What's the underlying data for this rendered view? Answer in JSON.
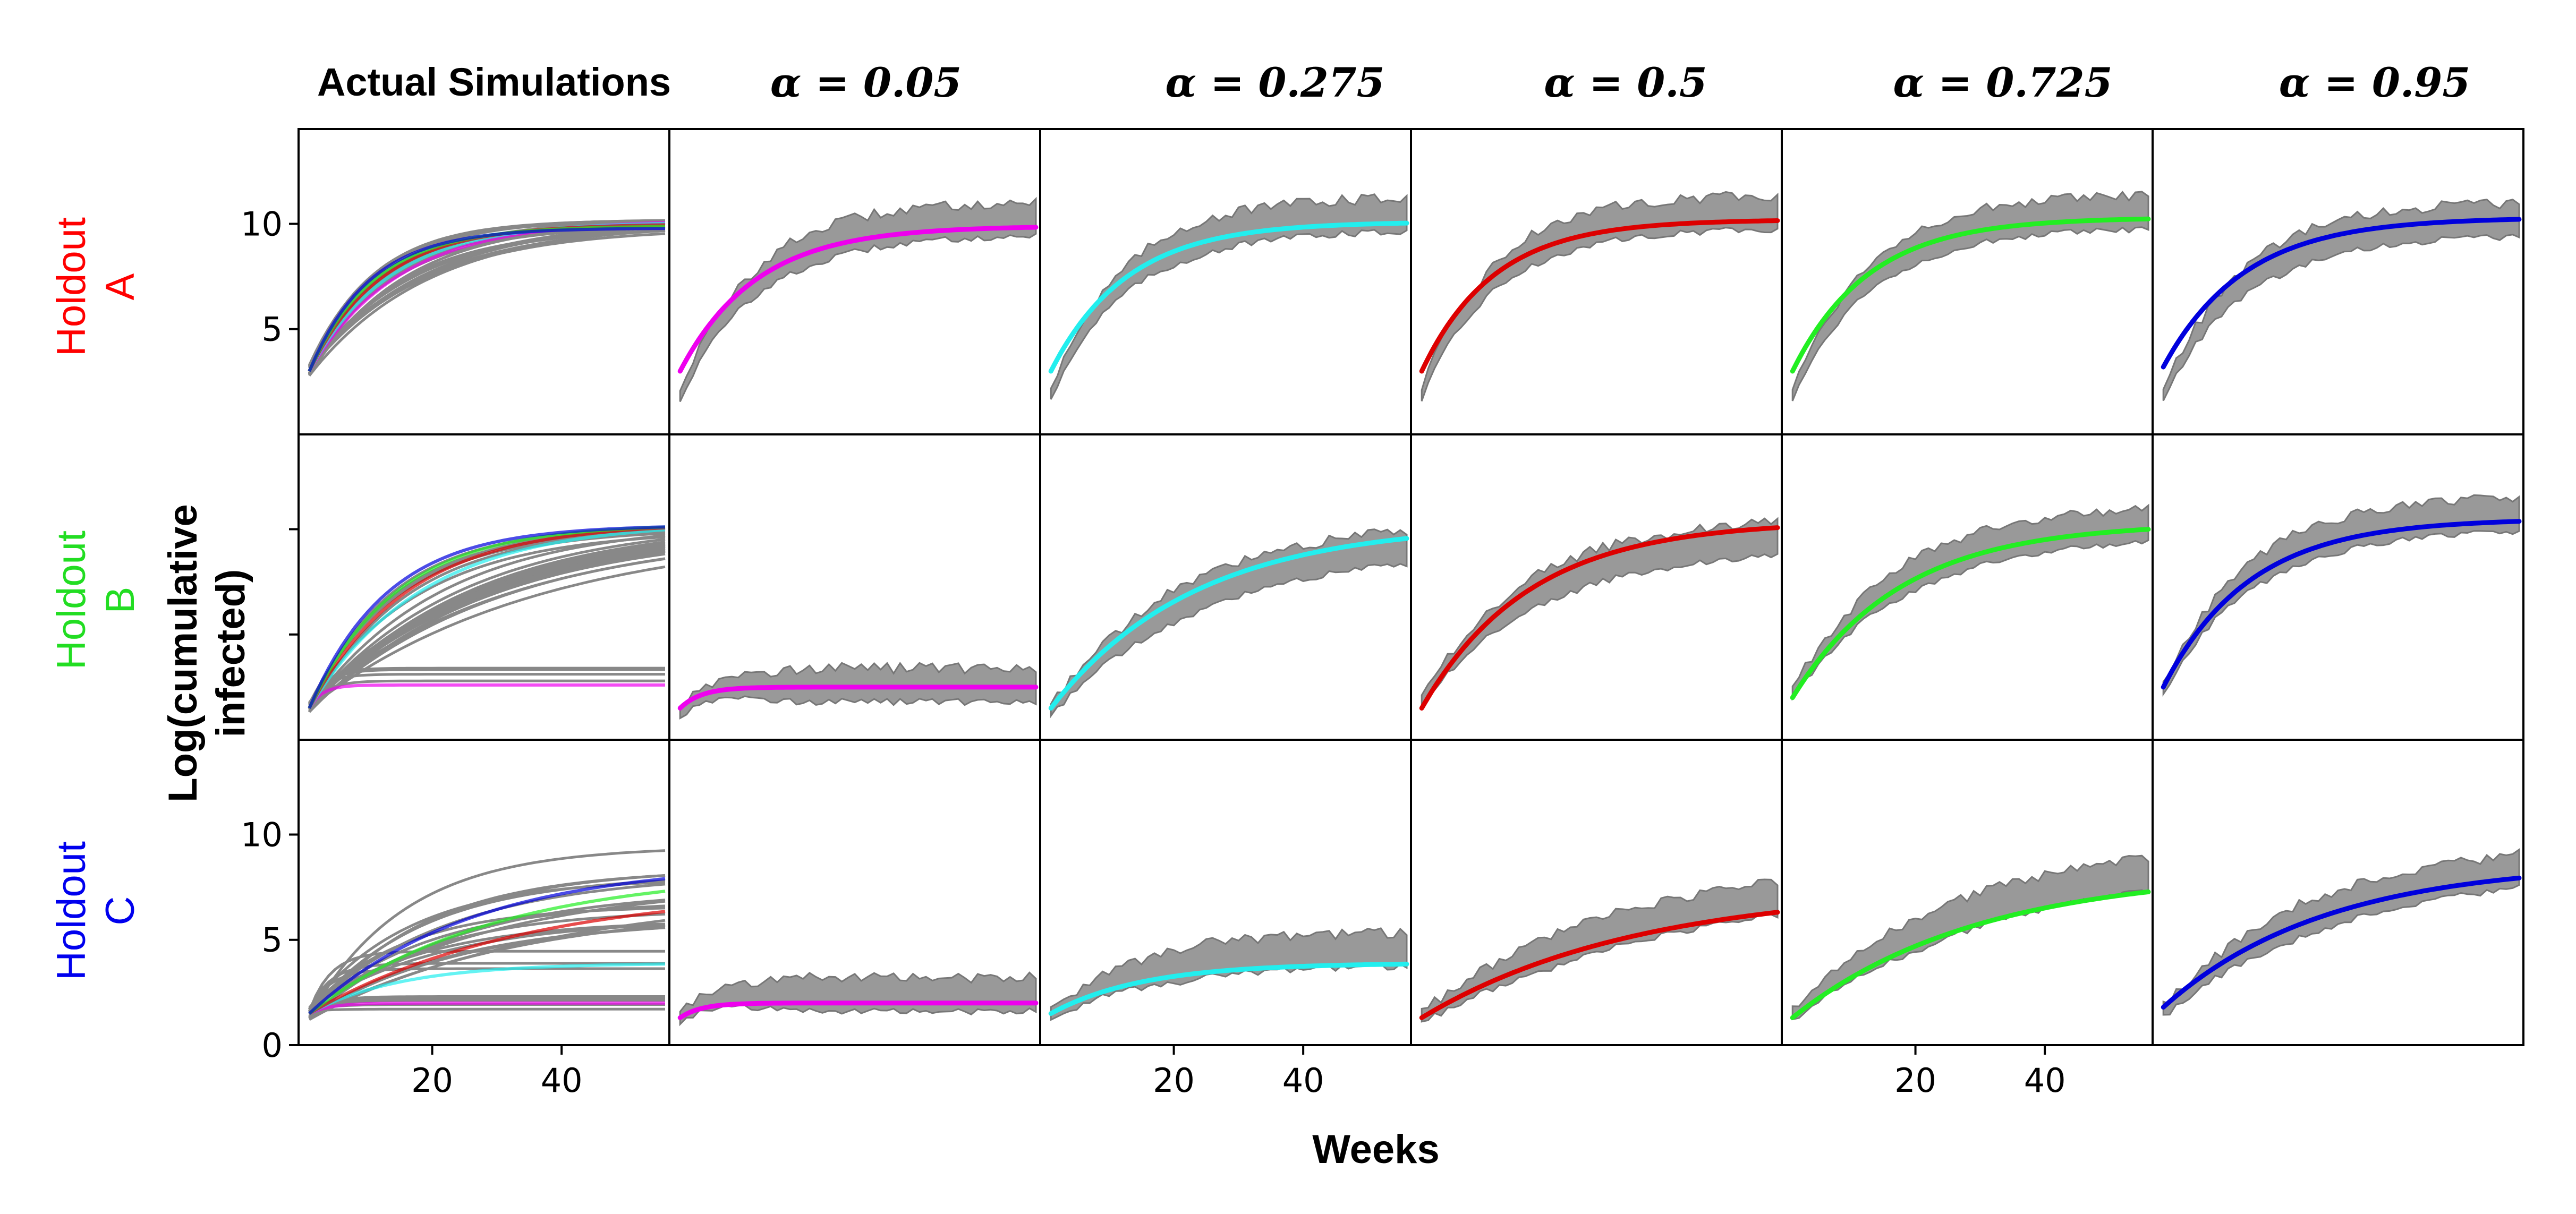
{
  "figure": {
    "xlabel": "Weeks",
    "ylabel_line1": "Log(cumulative",
    "ylabel_line2": "infected)",
    "column_titles": [
      "Actual Simulations",
      "α = 0.05",
      "α = 0.275",
      "α = 0.5",
      "α = 0.725",
      "α = 0.95"
    ],
    "row_labels": [
      {
        "line1": "Holdout",
        "line2": "A",
        "color": "#ff0000"
      },
      {
        "line1": "Holdout",
        "line2": "B",
        "color": "#22dd22"
      },
      {
        "line1": "Holdout",
        "line2": "C",
        "color": "#0000ee"
      }
    ],
    "colors": {
      "alpha_0.05": "#ee00ee",
      "alpha_0.275": "#22eeee",
      "alpha_0.5": "#dd0000",
      "alpha_0.725": "#22ee22",
      "alpha_0.95": "#0000dd",
      "sim": "#888888",
      "band": "#999999"
    }
  },
  "chart_data": {
    "type": "line",
    "layout": "grid 3 rows x 6 columns, shared axes",
    "x_axis": {
      "label": "Weeks",
      "range": [
        0,
        56
      ],
      "ticks": [
        20,
        40
      ],
      "tick_labels_on_columns": [
        0,
        2,
        4
      ]
    },
    "y_axis": {
      "label": "Log(cumulative infected)",
      "range": [
        0,
        14.5
      ],
      "ticks_rowA": [
        5,
        10
      ],
      "ticks_rowC": [
        0,
        5,
        10
      ],
      "ticks_rowB": "unlabeled at 5 and 10"
    },
    "grid": false,
    "panels": [
      {
        "row": "Holdout A",
        "column": "Actual Simulations",
        "description": "many grey simulation trajectories with colored highlighted trajectories",
        "start": 3,
        "plateau": 10.2,
        "k": 0.09
      },
      {
        "row": "Holdout A",
        "column": "α = 0.05",
        "curve_start": 3.0,
        "curve_plateau": 9.9,
        "k": 0.085,
        "band_start": 1.9,
        "band_plateau": 10.3
      },
      {
        "row": "Holdout A",
        "column": "α = 0.275",
        "curve_start": 3.0,
        "curve_plateau": 10.1,
        "k": 0.085,
        "band_start": 2.0,
        "band_plateau": 10.5
      },
      {
        "row": "Holdout A",
        "column": "α = 0.5",
        "curve_start": 3.0,
        "curve_plateau": 10.2,
        "k": 0.09,
        "band_start": 1.9,
        "band_plateau": 10.6
      },
      {
        "row": "Holdout A",
        "column": "α = 0.725",
        "curve_start": 3.0,
        "curve_plateau": 10.3,
        "k": 0.085,
        "band_start": 1.9,
        "band_plateau": 10.6
      },
      {
        "row": "Holdout A",
        "column": "α = 0.95",
        "curve_start": 3.2,
        "curve_plateau": 10.3,
        "k": 0.08,
        "band_start": 1.9,
        "band_plateau": 10.3
      },
      {
        "row": "Holdout B",
        "column": "Actual Simulations",
        "description": "many grey simulation trajectories with colored highlighted trajectories",
        "start": 1.5,
        "plateau": 10.4,
        "k": 0.07
      },
      {
        "row": "Holdout B",
        "column": "α = 0.05",
        "curve_start": 1.5,
        "curve_plateau": 2.5,
        "k": 0.3,
        "band_start": 1.3,
        "band_plateau": 2.6
      },
      {
        "row": "Holdout B",
        "column": "α = 0.275",
        "curve_start": 1.5,
        "curve_plateau": 10.3,
        "k": 0.045,
        "band_start": 1.4,
        "band_plateau": 9.9
      },
      {
        "row": "Holdout B",
        "column": "α = 0.5",
        "curve_start": 1.5,
        "curve_plateau": 10.4,
        "k": 0.06,
        "band_start": 1.8,
        "band_plateau": 9.8
      },
      {
        "row": "Holdout B",
        "column": "α = 0.725",
        "curve_start": 2.0,
        "curve_plateau": 10.3,
        "k": 0.06,
        "band_start": 2.2,
        "band_plateau": 10.5
      },
      {
        "row": "Holdout B",
        "column": "α = 0.95",
        "curve_start": 2.5,
        "curve_plateau": 10.5,
        "k": 0.075,
        "band_start": 2.4,
        "band_plateau": 10.8
      },
      {
        "row": "Holdout C",
        "column": "Actual Simulations",
        "description": "many grey simulation trajectories with colored highlighted trajectories",
        "start": 1.5,
        "plateau": 9.5,
        "k": 0.04
      },
      {
        "row": "Holdout C",
        "column": "α = 0.05",
        "curve_start": 1.3,
        "curve_plateau": 2.0,
        "k": 0.3,
        "band_start": 1.2,
        "band_plateau": 2.4
      },
      {
        "row": "Holdout C",
        "column": "α = 0.275",
        "curve_start": 1.5,
        "curve_plateau": 3.9,
        "k": 0.07,
        "band_start": 1.4,
        "band_plateau": 4.6
      },
      {
        "row": "Holdout C",
        "column": "α = 0.5",
        "curve_start": 1.3,
        "curve_plateau": 7.5,
        "k": 0.03,
        "band_start": 1.3,
        "band_plateau": 8.3
      },
      {
        "row": "Holdout C",
        "column": "α = 0.725",
        "curve_start": 1.3,
        "curve_plateau": 8.3,
        "k": 0.035,
        "band_start": 1.4,
        "band_plateau": 9.3
      },
      {
        "row": "Holdout C",
        "column": "α = 0.95",
        "curve_start": 1.8,
        "curve_plateau": 8.7,
        "k": 0.04,
        "band_start": 1.6,
        "band_plateau": 9.1
      }
    ]
  }
}
